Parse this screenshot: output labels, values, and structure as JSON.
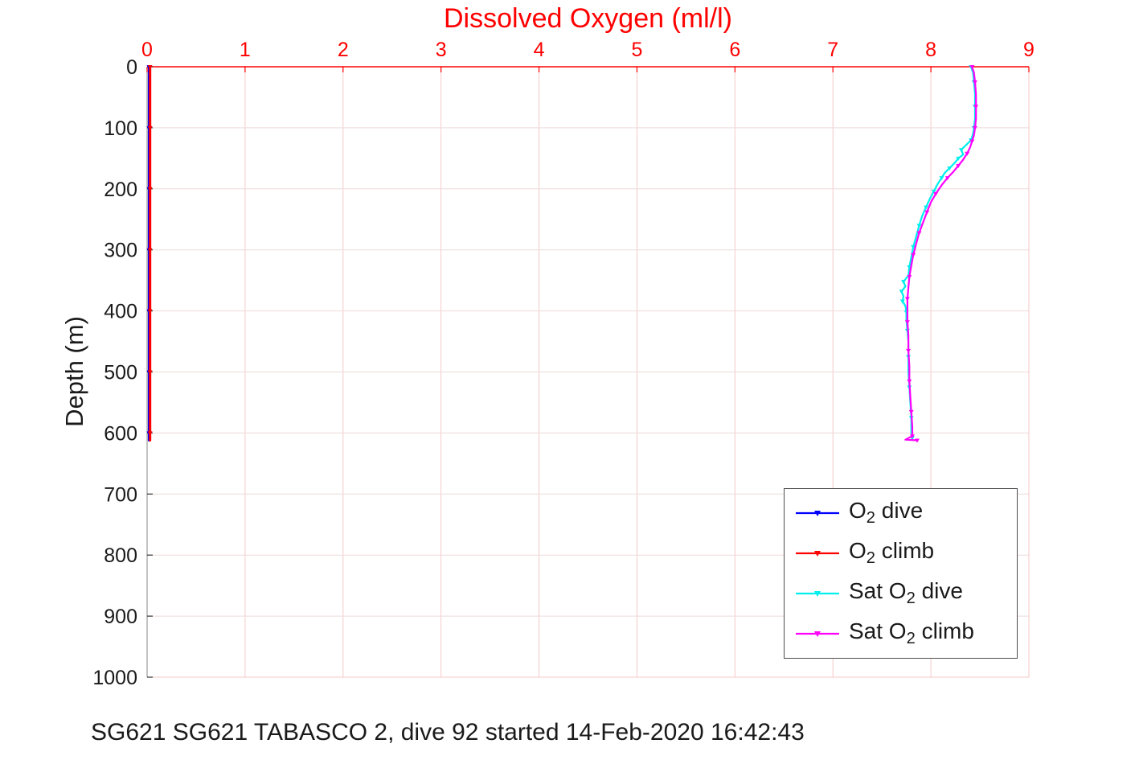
{
  "footer_caption": "SG621 SG621 TABASCO 2, dive 92 started 14-Feb-2020 16:42:43",
  "chart_data": {
    "type": "line",
    "title": "Dissolved Oxygen (ml/l)",
    "xlabel": "",
    "ylabel": "Depth (m)",
    "x_axis_location": "top",
    "y_axis_direction": "reverse",
    "xlim": [
      0,
      9
    ],
    "ylim": [
      0,
      1000
    ],
    "x_ticks": [
      0,
      1,
      2,
      3,
      4,
      5,
      6,
      7,
      8,
      9
    ],
    "y_ticks": [
      0,
      100,
      200,
      300,
      400,
      500,
      600,
      700,
      800,
      900,
      1000
    ],
    "grid": true,
    "legend_position": "lower-right",
    "colors": {
      "x_axis": "#ff0000",
      "y_axis": "#1a1a1a",
      "grid_vertical": "#f6caca",
      "grid_horizontal": "#eedada",
      "spine_bottom": "#f4c7c7",
      "spine_right": "#f4c7c7",
      "spine_left": "#8a8a8a"
    },
    "series": [
      {
        "id": "o2-dive",
        "name": "O2 dive",
        "legend": {
          "pre": "O",
          "sub": "2",
          "post": " dive"
        },
        "color": "#0000ff",
        "marker": "triangle-down",
        "line_width": 3,
        "depths": [
          0,
          50,
          100,
          150,
          200,
          250,
          300,
          350,
          400,
          450,
          500,
          550,
          600,
          612
        ],
        "values": [
          0.02,
          0.02,
          0.02,
          0.02,
          0.02,
          0.02,
          0.02,
          0.02,
          0.02,
          0.02,
          0.02,
          0.02,
          0.02,
          0.02
        ]
      },
      {
        "id": "o2-climb",
        "name": "O2 climb",
        "legend": {
          "pre": "O",
          "sub": "2",
          "post": " climb"
        },
        "color": "#ff0000",
        "marker": "triangle-down",
        "line_width": 3,
        "depths": [
          0,
          50,
          100,
          150,
          200,
          250,
          300,
          350,
          400,
          450,
          500,
          550,
          600,
          612
        ],
        "values": [
          0.03,
          0.03,
          0.03,
          0.03,
          0.03,
          0.03,
          0.03,
          0.03,
          0.03,
          0.03,
          0.03,
          0.03,
          0.03,
          0.03
        ]
      },
      {
        "id": "sat-o2-dive",
        "name": "Sat O2 dive",
        "legend": {
          "pre": "Sat O",
          "sub": "2",
          "post": " dive"
        },
        "color": "#00eeee",
        "marker": "triangle-down",
        "line_width": 2.2,
        "depths": [
          0,
          10,
          25,
          45,
          65,
          85,
          100,
          110,
          120,
          128,
          136,
          144,
          150,
          158,
          166,
          174,
          182,
          192,
          204,
          216,
          230,
          245,
          260,
          278,
          295,
          312,
          328,
          342,
          352,
          360,
          368,
          376,
          384,
          392,
          402,
          415,
          432,
          452,
          475,
          500,
          525,
          550,
          575,
          600,
          608
        ],
        "values": [
          8.41,
          8.43,
          8.44,
          8.45,
          8.45,
          8.45,
          8.44,
          8.43,
          8.41,
          8.36,
          8.31,
          8.33,
          8.28,
          8.24,
          8.19,
          8.14,
          8.11,
          8.07,
          8.03,
          7.99,
          7.95,
          7.91,
          7.88,
          7.85,
          7.82,
          7.8,
          7.78,
          7.77,
          7.72,
          7.74,
          7.7,
          7.72,
          7.71,
          7.74,
          7.75,
          7.75,
          7.76,
          7.77,
          7.77,
          7.77,
          7.78,
          7.79,
          7.8,
          7.8,
          7.81
        ]
      },
      {
        "id": "sat-o2-climb",
        "name": "Sat O2 climb",
        "legend": {
          "pre": "Sat O",
          "sub": "2",
          "post": " climb"
        },
        "color": "#ff00ff",
        "marker": "triangle-down",
        "line_width": 2.2,
        "depths": [
          0,
          10,
          25,
          45,
          65,
          85,
          100,
          112,
          122,
          132,
          142,
          152,
          162,
          172,
          182,
          194,
          208,
          222,
          238,
          255,
          272,
          290,
          308,
          326,
          344,
          362,
          380,
          398,
          418,
          440,
          465,
          490,
          515,
          540,
          565,
          590,
          605,
          611,
          612
        ],
        "values": [
          8.42,
          8.44,
          8.45,
          8.46,
          8.46,
          8.46,
          8.45,
          8.44,
          8.42,
          8.4,
          8.37,
          8.33,
          8.28,
          8.23,
          8.17,
          8.11,
          8.05,
          8.0,
          7.96,
          7.92,
          7.88,
          7.85,
          7.82,
          7.8,
          7.78,
          7.77,
          7.76,
          7.76,
          7.76,
          7.77,
          7.77,
          7.78,
          7.78,
          7.79,
          7.8,
          7.81,
          7.81,
          7.74,
          7.86
        ]
      }
    ]
  }
}
